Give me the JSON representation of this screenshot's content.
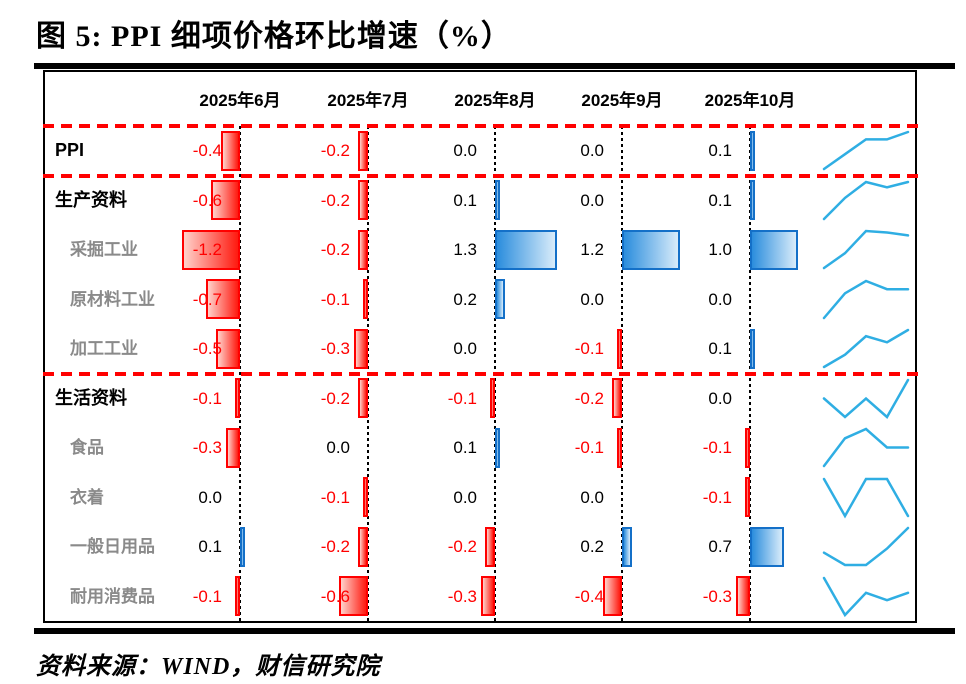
{
  "title": "图 5: PPI 细项价格环比增速（%）",
  "source": "资料来源：WIND，财信研究院",
  "chart_data": {
    "type": "table",
    "title": "PPI 细项价格环比增速（%）",
    "columns": [
      "2025年6月",
      "2025年7月",
      "2025年8月",
      "2025年9月",
      "2025年10月"
    ],
    "rows": [
      {
        "label": "PPI",
        "group": true,
        "values": [
          -0.4,
          -0.2,
          0.0,
          0.0,
          0.1
        ]
      },
      {
        "label": "生产资料",
        "group": true,
        "values": [
          -0.6,
          -0.2,
          0.1,
          0.0,
          0.1
        ]
      },
      {
        "label": "采掘工业",
        "group": false,
        "values": [
          -1.2,
          -0.2,
          1.3,
          1.2,
          1.0
        ]
      },
      {
        "label": "原材料工业",
        "group": false,
        "values": [
          -0.7,
          -0.1,
          0.2,
          0.0,
          0.0
        ]
      },
      {
        "label": "加工工业",
        "group": false,
        "values": [
          -0.5,
          -0.3,
          0.0,
          -0.1,
          0.1
        ]
      },
      {
        "label": "生活资料",
        "group": true,
        "values": [
          -0.1,
          -0.2,
          -0.1,
          -0.2,
          0.0
        ]
      },
      {
        "label": "食品",
        "group": false,
        "values": [
          -0.3,
          0.0,
          0.1,
          -0.1,
          -0.1
        ]
      },
      {
        "label": "衣着",
        "group": false,
        "values": [
          0.0,
          -0.1,
          0.0,
          0.0,
          -0.1
        ]
      },
      {
        "label": "一般日用品",
        "group": false,
        "values": [
          0.1,
          -0.2,
          -0.2,
          0.2,
          0.7
        ]
      },
      {
        "label": "耐用消费品",
        "group": false,
        "values": [
          -0.1,
          -0.6,
          -0.3,
          -0.4,
          -0.3
        ]
      }
    ],
    "value_format": "one-decimal",
    "bar_style": "data-bars-anchored-at-zero-axis",
    "grid": "dotted-zero-axis-per-column",
    "legend_position": "none",
    "colors": {
      "positive_bar_dark": "#2a8ddd",
      "positive_bar_fade": "#d9ecfa",
      "positive_bar_border": "#1470c8",
      "negative_bar_dark": "#ff1a10",
      "negative_bar_fade": "#ffd2cb",
      "negative_bar_border": "#ff0000",
      "negative_text": "#ff0000",
      "positive_text": "#000000",
      "sparkline": "#2faee3",
      "separator": "#ff0000"
    }
  }
}
